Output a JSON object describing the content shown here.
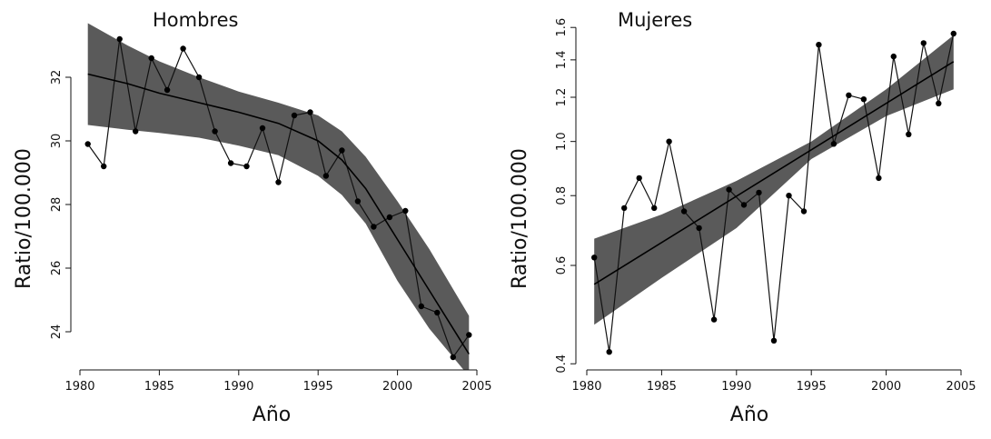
{
  "chart_data": [
    {
      "type": "line",
      "title": "Hombres",
      "xlabel": "Año",
      "ylabel": "Ratio/100.000",
      "xlim": [
        1980,
        2005
      ],
      "ylim": [
        22.8,
        33.8
      ],
      "yscale": "linear",
      "xticks": [
        1980,
        1985,
        1990,
        1995,
        2000,
        2005
      ],
      "yticks": [
        24,
        26,
        28,
        30,
        32
      ],
      "xticklabels": [
        "1980",
        "1985",
        "1990",
        "1995",
        "2000",
        "2005"
      ],
      "yticklabels": [
        "24",
        "26",
        "28",
        "30",
        "32"
      ],
      "grid": false,
      "series": [
        {
          "style": "observed-points-line",
          "x": [
            1980.5,
            1981.5,
            1982.5,
            1983.5,
            1984.5,
            1985.5,
            1986.5,
            1987.5,
            1988.5,
            1989.5,
            1990.5,
            1991.5,
            1992.5,
            1993.5,
            1994.5,
            1995.5,
            1996.5,
            1997.5,
            1998.5,
            1999.5,
            2000.5,
            2001.5,
            2002.5,
            2003.5,
            2004.5
          ],
          "y": [
            29.9,
            29.2,
            33.2,
            30.3,
            32.6,
            31.6,
            32.9,
            32.0,
            30.3,
            29.3,
            29.2,
            30.4,
            28.7,
            30.8,
            30.9,
            28.9,
            29.7,
            28.1,
            27.3,
            27.6,
            27.8,
            24.8,
            24.6,
            23.2,
            23.9
          ]
        },
        {
          "style": "fitted-trend",
          "x": [
            1980.5,
            1983,
            1985,
            1987.5,
            1990,
            1992.5,
            1995,
            1996.5,
            1998,
            2000,
            2002,
            2004.5
          ],
          "y": [
            32.1,
            31.8,
            31.5,
            31.2,
            30.9,
            30.55,
            30.0,
            29.4,
            28.5,
            26.9,
            25.3,
            23.3
          ]
        },
        {
          "style": "confidence-band",
          "x": [
            1980.5,
            1983,
            1985,
            1987.5,
            1990,
            1992.5,
            1995,
            1996.5,
            1998,
            2000,
            2002,
            2004.5
          ],
          "lower": [
            30.5,
            30.35,
            30.25,
            30.1,
            29.85,
            29.55,
            28.9,
            28.3,
            27.4,
            25.6,
            24.1,
            22.6
          ],
          "upper": [
            33.7,
            33.0,
            32.5,
            32.0,
            31.55,
            31.2,
            30.8,
            30.3,
            29.5,
            28.1,
            26.6,
            24.5
          ]
        }
      ]
    },
    {
      "type": "line",
      "title": "Mujeres",
      "xlabel": "Año",
      "ylabel": "Ratio/100.000",
      "xlim": [
        1980,
        2005
      ],
      "ylim": [
        0.39,
        1.65
      ],
      "yscale": "log",
      "xticks": [
        1980,
        1985,
        1990,
        1995,
        2000,
        2005
      ],
      "yticks": [
        0.4,
        0.6,
        0.8,
        1.0,
        1.2,
        1.4,
        1.6
      ],
      "xticklabels": [
        "1980",
        "1985",
        "1990",
        "1995",
        "2000",
        "2005"
      ],
      "yticklabels": [
        "0.4",
        "0.6",
        "0.8",
        "1.0",
        "1.2",
        "1.4",
        "1.6"
      ],
      "grid": false,
      "series": [
        {
          "style": "observed-points-line",
          "x": [
            1980.5,
            1981.5,
            1982.5,
            1983.5,
            1984.5,
            1985.5,
            1986.5,
            1987.5,
            1988.5,
            1989.5,
            1990.5,
            1991.5,
            1992.5,
            1993.5,
            1994.5,
            1995.5,
            1996.5,
            1997.5,
            1998.5,
            1999.5,
            2000.5,
            2001.5,
            2002.5,
            2003.5,
            2004.5
          ],
          "y": [
            0.62,
            0.42,
            0.76,
            0.86,
            0.76,
            1.0,
            0.75,
            0.7,
            0.48,
            0.82,
            0.77,
            0.81,
            0.44,
            0.8,
            0.75,
            1.49,
            0.99,
            1.21,
            1.19,
            0.86,
            1.42,
            1.03,
            1.5,
            1.17,
            1.56
          ]
        },
        {
          "style": "fitted-trend",
          "x": [
            1980.5,
            2004.5
          ],
          "y": [
            0.555,
            1.39
          ]
        },
        {
          "style": "confidence-band",
          "x": [
            1980.5,
            1985,
            1990,
            1995,
            2000,
            2004.5
          ],
          "lower": [
            0.47,
            0.57,
            0.7,
            0.93,
            1.11,
            1.24
          ],
          "upper": [
            0.67,
            0.74,
            0.85,
            1.0,
            1.24,
            1.55
          ]
        }
      ]
    }
  ]
}
